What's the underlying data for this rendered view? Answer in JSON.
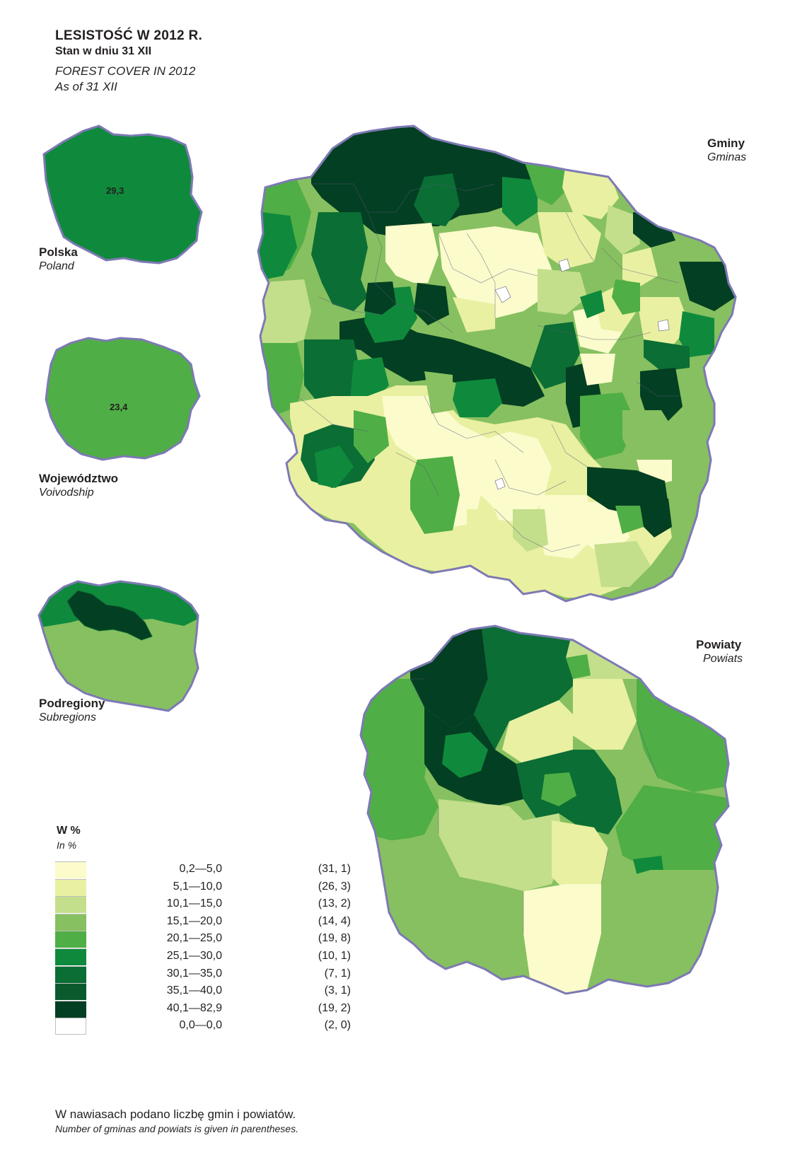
{
  "title": {
    "main_pl": "LESISTOŚĆ  W  2012 R.",
    "sub_pl": "Stan w dniu 31 XII",
    "main_en": "FOREST COVER IN 2012",
    "sub_en": "As of 31 XII"
  },
  "panels": {
    "polska": {
      "label": "Polska",
      "label_en": "Poland",
      "value": "29,3",
      "color": "#0f8a3c"
    },
    "wojewodztwo": {
      "label": "Województwo",
      "label_en": "Voivodship",
      "value": "23,4",
      "color": "#4fae45"
    },
    "podregiony": {
      "label": "Podregiony",
      "label_en": "Subregions"
    },
    "gminy": {
      "label": "Gminy",
      "label_en": "Gminas"
    },
    "powiaty": {
      "label": "Powiaty",
      "label_en": "Powiats"
    }
  },
  "legend": {
    "title": "W %",
    "title_en": "In %",
    "classes": [
      {
        "range": "0,2—5,0",
        "count": "(31, 1)",
        "color": "#fbfbcc"
      },
      {
        "range": "5,1—10,0",
        "count": "(26, 3)",
        "color": "#e9f0a2"
      },
      {
        "range": "10,1—15,0",
        "count": "(13, 2)",
        "color": "#c4df8c"
      },
      {
        "range": "15,1—20,0",
        "count": "(14, 4)",
        "color": "#87c060"
      },
      {
        "range": "20,1—25,0",
        "count": "(19, 8)",
        "color": "#4fae45"
      },
      {
        "range": "25,1—30,0",
        "count": "(10, 1)",
        "color": "#0f8a3c"
      },
      {
        "range": "30,1—35,0",
        "count": "(7, 1)",
        "color": "#0b6e34"
      },
      {
        "range": "35,1—40,0",
        "count": "(3, 1)",
        "color": "#0a5a2e"
      },
      {
        "range": "40,1—82,9",
        "count": "(19, 2)",
        "color": "#033f22"
      },
      {
        "range": "0,0—0,0",
        "count": "(2, 0)",
        "color": "#ffffff"
      }
    ]
  },
  "footnote": {
    "pl": "W nawiasach podano liczbę gmin i powiatów.",
    "en": "Number of gminas and powiats is given in parentheses."
  },
  "colors": {
    "border": "#7d79b4"
  }
}
